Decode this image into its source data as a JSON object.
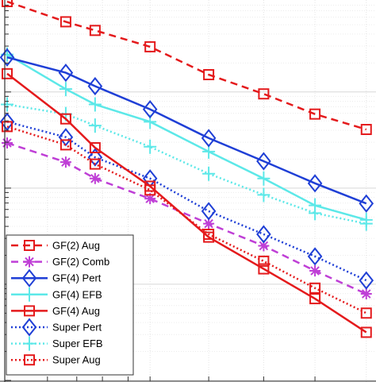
{
  "chart_data": {
    "type": "line",
    "title": "",
    "xlabel": "",
    "ylabel": "",
    "xlim": [
      0,
      1
    ],
    "ylog": true,
    "ylim_log10": [
      -4.0,
      -0.06
    ],
    "grid": true,
    "legend_placement": "bottom-left",
    "x": [
      0.0,
      0.16,
      0.24,
      0.39,
      0.55,
      0.7,
      0.84,
      0.98
    ],
    "series": [
      {
        "name": "GF(2) Aug",
        "color": "#e41a1c",
        "line": "dashed",
        "marker": "square",
        "values": [
          -0.06,
          -0.27,
          -0.36,
          -0.53,
          -0.82,
          -1.02,
          -1.23,
          -1.39
        ]
      },
      {
        "name": "GF(2) Comb",
        "color": "#bf3fd6",
        "line": "dashed",
        "marker": "asterisk",
        "values": [
          -1.53,
          -1.73,
          -1.9,
          -2.11,
          -2.37,
          -2.6,
          -2.86,
          -3.1
        ]
      },
      {
        "name": "GF(4) Pert",
        "color": "#1f3fd6",
        "line": "solid",
        "marker": "diamond",
        "values": [
          -0.64,
          -0.8,
          -0.94,
          -1.18,
          -1.48,
          -1.72,
          -1.95,
          -2.16
        ]
      },
      {
        "name": "GF(4) EFB",
        "color": "#5ce8e8",
        "line": "solid",
        "marker": "plus",
        "values": [
          -0.61,
          -0.97,
          -1.13,
          -1.31,
          -1.62,
          -1.9,
          -2.18,
          -2.33
        ]
      },
      {
        "name": "GF(4) Aug",
        "color": "#e41a1c",
        "line": "solid",
        "marker": "square",
        "values": [
          -0.81,
          -1.28,
          -1.58,
          -1.98,
          -2.51,
          -2.84,
          -3.15,
          -3.5
        ]
      },
      {
        "name": "Super Pert",
        "color": "#1f3fd6",
        "line": "dotted",
        "marker": "diamond",
        "values": [
          -1.31,
          -1.47,
          -1.68,
          -1.9,
          -2.24,
          -2.48,
          -2.71,
          -2.96
        ]
      },
      {
        "name": "Super EFB",
        "color": "#5ce8e8",
        "line": "dotted",
        "marker": "plus",
        "values": [
          -1.13,
          -1.23,
          -1.35,
          -1.57,
          -1.85,
          -2.07,
          -2.26,
          -2.37
        ]
      },
      {
        "name": "Super Aug",
        "color": "#e41a1c",
        "line": "dotted",
        "marker": "square",
        "values": [
          -1.36,
          -1.55,
          -1.75,
          -2.02,
          -2.48,
          -2.76,
          -3.04,
          -3.3
        ]
      }
    ]
  }
}
